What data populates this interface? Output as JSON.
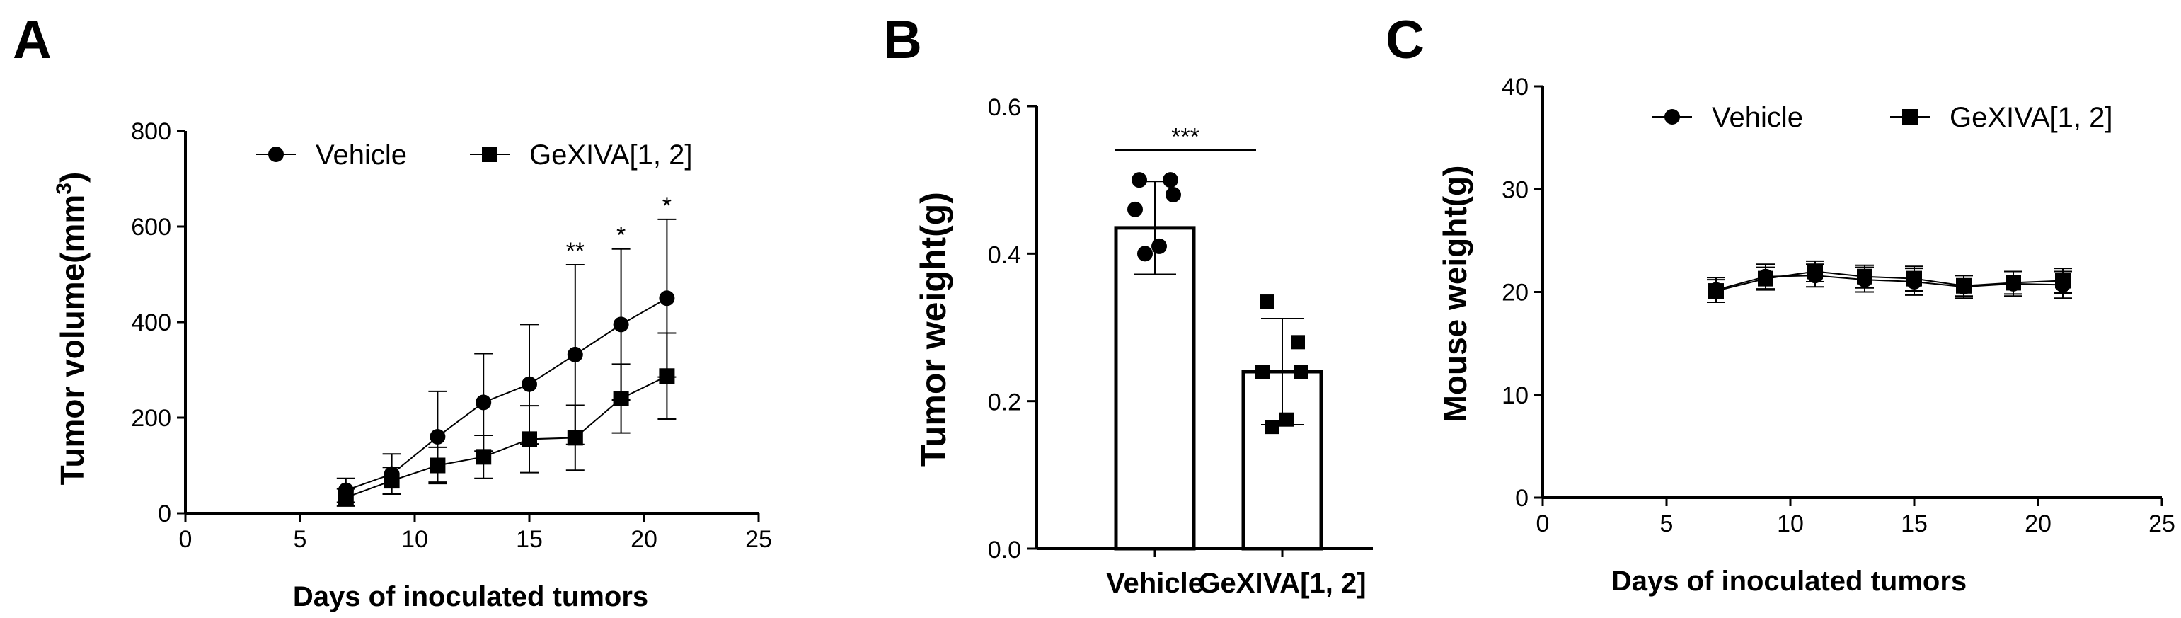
{
  "chart_data": [
    {
      "panel": "A",
      "type": "line",
      "xlabel": "Days of inoculated tumors",
      "ylabel": "Tumor volume(mm",
      "ylabel_sup": "3",
      "ylabel_close": ")",
      "xlim": [
        0,
        25
      ],
      "ylim": [
        0,
        800
      ],
      "xticks": [
        "0",
        "5",
        "10",
        "15",
        "20",
        "25"
      ],
      "yticks": [
        "0",
        "200",
        "400",
        "600",
        "800"
      ],
      "legend": "top",
      "series": [
        {
          "name": "Vehicle",
          "marker": "circle",
          "x": [
            7,
            9,
            11,
            13,
            15,
            17,
            19,
            21
          ],
          "y": [
            48,
            82,
            160,
            232,
            270,
            332,
            395,
            450
          ],
          "err": [
            25,
            42,
            95,
            102,
            125,
            188,
            158,
            165
          ]
        },
        {
          "name": "GeXIVA[1, 2]",
          "marker": "square",
          "x": [
            7,
            9,
            11,
            13,
            15,
            17,
            19,
            21
          ],
          "y": [
            33,
            68,
            100,
            118,
            155,
            158,
            240,
            287
          ],
          "err": [
            18,
            28,
            38,
            45,
            70,
            68,
            72,
            90
          ]
        }
      ],
      "annotations": [
        {
          "x": 17,
          "y": 520,
          "text": "**"
        },
        {
          "x": 19,
          "y": 553,
          "text": "*"
        },
        {
          "x": 21,
          "y": 615,
          "text": "*"
        }
      ]
    },
    {
      "panel": "B",
      "type": "bar",
      "ylabel": "Tumor weight(g)",
      "ylim": [
        0,
        0.6
      ],
      "yticks": [
        "0.0",
        "0.2",
        "0.4",
        "0.6"
      ],
      "categories": [
        "Vehicle",
        "GeXIVA[1, 2]"
      ],
      "values": [
        0.435,
        0.24
      ],
      "err": [
        0.063,
        0.072
      ],
      "points": [
        [
          0.5,
          0.5,
          0.48,
          0.46,
          0.41,
          0.4
        ],
        [
          0.335,
          0.28,
          0.24,
          0.24,
          0.175,
          0.165
        ]
      ],
      "significance": {
        "text": "***",
        "y": 0.54
      }
    },
    {
      "panel": "C",
      "type": "line",
      "xlabel": "Days of inoculated tumors",
      "ylabel": "Mouse weight(g)",
      "xlim": [
        0,
        25
      ],
      "ylim": [
        0,
        40
      ],
      "xticks": [
        "0",
        "5",
        "10",
        "15",
        "20",
        "25"
      ],
      "yticks": [
        "0",
        "10",
        "20",
        "30",
        "40"
      ],
      "legend": "top",
      "series": [
        {
          "name": "Vehicle",
          "marker": "circle",
          "x": [
            7,
            9,
            11,
            13,
            15,
            17,
            19,
            21
          ],
          "y": [
            20.2,
            21.5,
            21.6,
            21.2,
            21.0,
            20.5,
            20.8,
            20.7
          ],
          "err": [
            1.2,
            1.2,
            1.1,
            1.2,
            1.3,
            1.1,
            1.2,
            1.3
          ]
        },
        {
          "name": "GeXIVA[1, 2]",
          "marker": "square",
          "x": [
            7,
            9,
            11,
            13,
            15,
            17,
            19,
            21
          ],
          "y": [
            20.1,
            21.3,
            22.0,
            21.5,
            21.3,
            20.6,
            20.9,
            21.1
          ],
          "err": [
            1.1,
            1.1,
            1.0,
            1.1,
            1.2,
            1.0,
            1.1,
            1.2
          ]
        }
      ]
    }
  ]
}
